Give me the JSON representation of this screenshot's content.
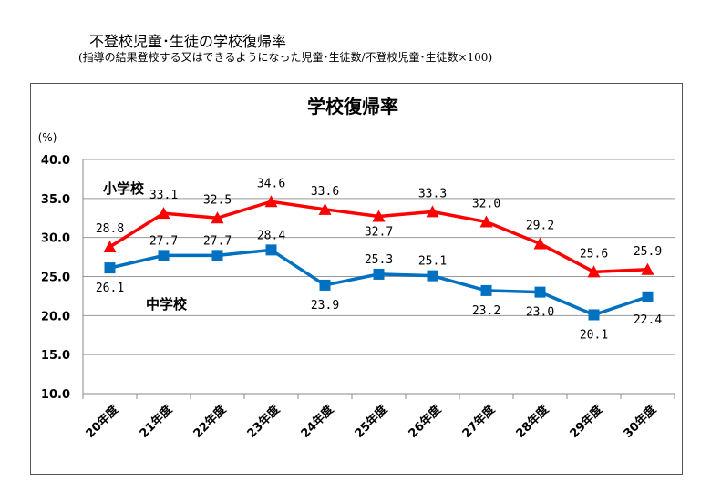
{
  "header": {
    "title": "不登校児童･生徒の学校復帰率",
    "subtitle": "(指導の結果登校する又はできるようになった児童･生徒数/不登校児童･生徒数×100)"
  },
  "chart_data": {
    "type": "line",
    "title": "学校復帰率",
    "ylabel": "(%)",
    "xlabel": "",
    "ylim": [
      10.0,
      40.0
    ],
    "yticks": [
      "10.0",
      "15.0",
      "20.0",
      "25.0",
      "30.0",
      "35.0",
      "40.0"
    ],
    "categories": [
      "20年度",
      "21年度",
      "22年度",
      "23年度",
      "24年度",
      "25年度",
      "26年度",
      "27年度",
      "28年度",
      "29年度",
      "30年度"
    ],
    "grid": true,
    "series": [
      {
        "name": "小学校",
        "color": "#ff0000",
        "marker": "triangle",
        "values": [
          28.8,
          33.1,
          32.5,
          34.6,
          33.6,
          32.7,
          33.3,
          32.0,
          29.2,
          25.6,
          25.9
        ],
        "labels": [
          "28.8",
          "33.1",
          "32.5",
          "34.6",
          "33.6",
          "32.7",
          "33.3",
          "32.0",
          "29.2",
          "25.6",
          "25.9"
        ]
      },
      {
        "name": "中学校",
        "color": "#0070c0",
        "marker": "square",
        "values": [
          26.1,
          27.7,
          27.7,
          28.4,
          23.9,
          25.3,
          25.1,
          23.2,
          23.0,
          20.1,
          22.4
        ],
        "labels": [
          "26.1",
          "27.7",
          "27.7",
          "28.4",
          "23.9",
          "25.3",
          "25.1",
          "23.2",
          "23.0",
          "20.1",
          "22.4"
        ]
      }
    ]
  }
}
